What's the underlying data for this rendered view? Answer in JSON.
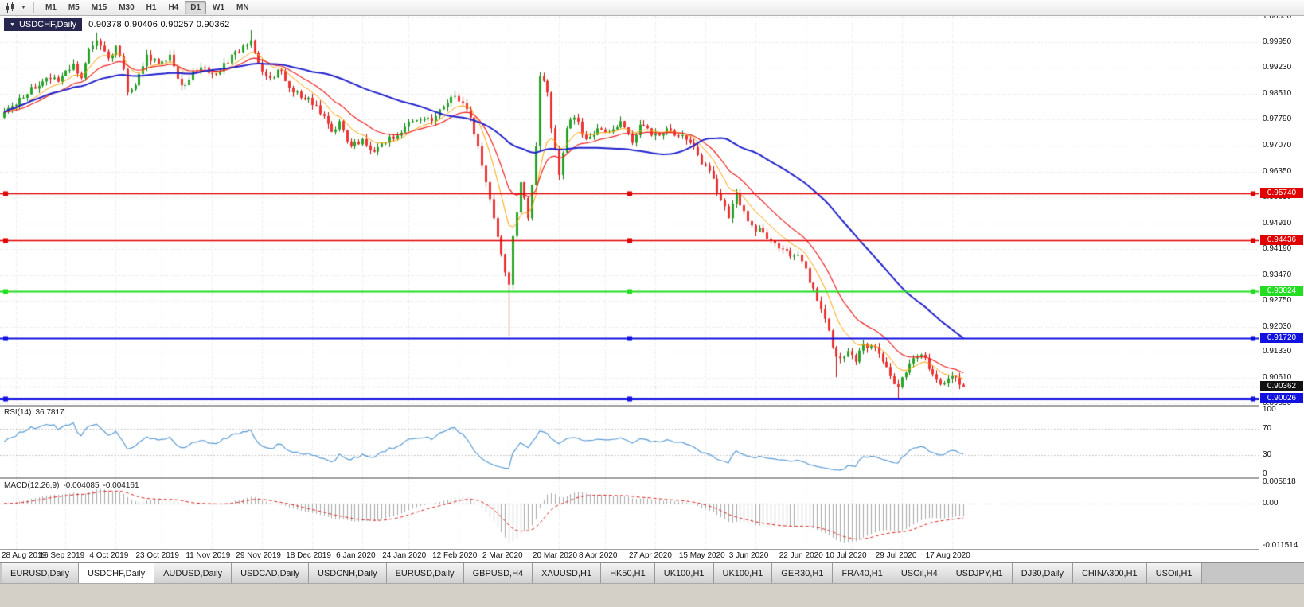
{
  "toolbar": {
    "timeframes": [
      "M1",
      "M5",
      "M15",
      "M30",
      "H1",
      "H4",
      "D1",
      "W1",
      "MN"
    ],
    "active_timeframe": "D1"
  },
  "chart": {
    "symbol_label": "USDCHF,Daily",
    "ohlc_text": "0.90378 0.90406 0.90257 0.90362"
  },
  "rsi": {
    "name": "RSI(14)",
    "value": "36.7817"
  },
  "macd": {
    "name": "MACD(12,26,9)",
    "value": "-0.004085",
    "signal_value": "-0.004161"
  },
  "tabs": {
    "active_index": 1,
    "items": [
      "EURUSD,Daily",
      "USDCHF,Daily",
      "AUDUSD,Daily",
      "USDCAD,Daily",
      "USDCNH,Daily",
      "EURUSD,Daily",
      "GBPUSD,H4",
      "XAUUSD,H1",
      "HK50,H1",
      "UK100,H1",
      "UK100,H1",
      "GER30,H1",
      "FRA40,H1",
      "USOil,H4",
      "USDJPY,H1",
      "DJ30,Daily",
      "CHINA300,H1",
      "USOil,H1"
    ]
  },
  "chart_data": {
    "type": "candlestick",
    "symbol": "USDCHF",
    "timeframe": "Daily",
    "y_range": [
      0.8985,
      1.0068
    ],
    "price_axis_ticks": [
      "1.00650",
      "0.99950",
      "0.99230",
      "0.98510",
      "0.97790",
      "0.97070",
      "0.96350",
      "0.95630",
      "0.94910",
      "0.94190",
      "0.93470",
      "0.92750",
      "0.92030",
      "0.91330",
      "0.90610",
      "0.89890"
    ],
    "current_price": 0.90362,
    "current_price_label": "0.90362",
    "x_axis_dates": [
      "28 Aug 2019",
      "16 Sep 2019",
      "4 Oct 2019",
      "23 Oct 2019",
      "11 Nov 2019",
      "29 Nov 2019",
      "18 Dec 2019",
      "6 Jan 2020",
      "24 Jan 2020",
      "12 Feb 2020",
      "2 Mar 2020",
      "20 Mar 2020",
      "8 Apr 2020",
      "27 Apr 2020",
      "15 May 2020",
      "3 Jun 2020",
      "22 Jun 2020",
      "10 Jul 2020",
      "29 Jul 2020",
      "17 Aug 2020"
    ],
    "dates_first_index": 3,
    "dates_index_step": 12.79,
    "candles": {
      "count": 250,
      "x_start": 5,
      "x_step": 4.84,
      "noise": 0.0011,
      "wick": 0.0014,
      "noise_seed": 13,
      "up_color": "#27a427",
      "up_border": "#157a15",
      "down_color": "#ee3333",
      "down_border": "#bb1111",
      "close_anchors": [
        [
          0,
          0.98
        ],
        [
          4,
          0.984
        ],
        [
          7,
          0.987
        ],
        [
          11,
          0.9895
        ],
        [
          14,
          0.9885
        ],
        [
          18,
          0.9935
        ],
        [
          20,
          0.9895
        ],
        [
          22,
          0.9975
        ],
        [
          24,
          1.0
        ],
        [
          27,
          0.995
        ],
        [
          29,
          0.9985
        ],
        [
          31,
          0.992
        ],
        [
          32,
          0.9855
        ],
        [
          34,
          0.9875
        ],
        [
          37,
          0.996
        ],
        [
          40,
          0.9935
        ],
        [
          43,
          0.996
        ],
        [
          46,
          0.9875
        ],
        [
          51,
          0.9925
        ],
        [
          55,
          0.9905
        ],
        [
          59,
          0.996
        ],
        [
          62,
          0.9985
        ],
        [
          64,
          1.0
        ],
        [
          66,
          0.9935
        ],
        [
          69,
          0.9895
        ],
        [
          72,
          0.9915
        ],
        [
          75,
          0.9855
        ],
        [
          79,
          0.984
        ],
        [
          82,
          0.9795
        ],
        [
          85,
          0.9745
        ],
        [
          87,
          0.9775
        ],
        [
          90,
          0.9705
        ],
        [
          93,
          0.9725
        ],
        [
          96,
          0.969
        ],
        [
          99,
          0.9715
        ],
        [
          102,
          0.9735
        ],
        [
          106,
          0.9775
        ],
        [
          111,
          0.9775
        ],
        [
          114,
          0.9815
        ],
        [
          117,
          0.9845
        ],
        [
          119,
          0.9825
        ],
        [
          121,
          0.9785
        ],
        [
          123,
          0.9705
        ],
        [
          125,
          0.9605
        ],
        [
          127,
          0.9505
        ],
        [
          129,
          0.9405
        ],
        [
          131,
          0.932
        ],
        [
          132,
          0.9455
        ],
        [
          134,
          0.9605
        ],
        [
          136,
          0.9505
        ],
        [
          138,
          0.9705
        ],
        [
          139,
          0.99
        ],
        [
          141,
          0.9855
        ],
        [
          142,
          0.9755
        ],
        [
          144,
          0.9625
        ],
        [
          146,
          0.9755
        ],
        [
          148,
          0.9785
        ],
        [
          151,
          0.9725
        ],
        [
          154,
          0.9755
        ],
        [
          157,
          0.9745
        ],
        [
          160,
          0.9775
        ],
        [
          163,
          0.9715
        ],
        [
          165,
          0.9765
        ],
        [
          168,
          0.9735
        ],
        [
          172,
          0.9755
        ],
        [
          175,
          0.9735
        ],
        [
          178,
          0.9715
        ],
        [
          181,
          0.9655
        ],
        [
          184,
          0.9615
        ],
        [
          186,
          0.9555
        ],
        [
          188,
          0.9505
        ],
        [
          190,
          0.9575
        ],
        [
          192,
          0.9525
        ],
        [
          194,
          0.9485
        ],
        [
          197,
          0.9465
        ],
        [
          200,
          0.9435
        ],
        [
          203,
          0.9415
        ],
        [
          207,
          0.9385
        ],
        [
          209,
          0.9325
        ],
        [
          211,
          0.9275
        ],
        [
          213,
          0.9225
        ],
        [
          215,
          0.9145
        ],
        [
          217,
          0.9115
        ],
        [
          219,
          0.9135
        ],
        [
          221,
          0.9105
        ],
        [
          223,
          0.9155
        ],
        [
          226,
          0.9145
        ],
        [
          228,
          0.9105
        ],
        [
          230,
          0.9065
        ],
        [
          232,
          0.9035
        ],
        [
          234,
          0.9075
        ],
        [
          236,
          0.9115
        ],
        [
          238,
          0.9125
        ],
        [
          240,
          0.9085
        ],
        [
          242,
          0.9055
        ],
        [
          244,
          0.9045
        ],
        [
          246,
          0.9065
        ],
        [
          249,
          0.9036
        ]
      ],
      "wick_highs": [
        [
          24,
          1.0022
        ],
        [
          64,
          1.0028
        ],
        [
          117,
          0.9858
        ],
        [
          139,
          0.9912
        ]
      ],
      "wick_lows": [
        [
          131,
          0.9177
        ],
        [
          216,
          0.9062
        ],
        [
          232,
          0.9004
        ]
      ]
    },
    "moving_averages": [
      {
        "period": 9,
        "type": "ema",
        "color": "#ffa000",
        "width": 1
      },
      {
        "period": 18,
        "type": "ema",
        "color": "#ee2222",
        "width": 1.2
      },
      {
        "period": 50,
        "type": "sma",
        "color": "#2222cc",
        "width": 2
      }
    ],
    "hlines": [
      {
        "price": 0.9574,
        "label": "0.95740",
        "color": "#e00000",
        "width": 1.5
      },
      {
        "price": 0.94436,
        "label": "0.94436",
        "color": "#e00000",
        "width": 1.5
      },
      {
        "price": 0.93024,
        "label": "0.93024",
        "color": "#22dd22",
        "width": 2
      },
      {
        "price": 0.9172,
        "label": "0.91720",
        "color": "#1212e0",
        "width": 2
      },
      {
        "price": 0.90026,
        "label": "0.90026",
        "color": "#1212e0",
        "width": 3
      }
    ],
    "rsi": {
      "period": 14,
      "color": "#5b9bd5",
      "levels": [
        "100",
        "70",
        "30",
        "0"
      ],
      "level_values": [
        100,
        70,
        30,
        0
      ],
      "dotted_levels": [
        70,
        30
      ]
    },
    "macd": {
      "fast": 12,
      "slow": 26,
      "signal": 9,
      "range": [
        -0.011514,
        0.005818
      ],
      "axis_texts": [
        "0.005818",
        "0.00",
        "-0.011514"
      ],
      "axis_values": [
        0.005818,
        0,
        -0.011514
      ],
      "hist_color": "#a8a8a8",
      "signal_color": "#dd2222"
    }
  }
}
